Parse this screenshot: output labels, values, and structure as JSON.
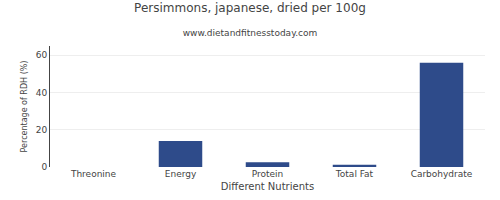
{
  "chart_data": {
    "type": "bar",
    "title": "Persimmons, japanese, dried per 100g",
    "subtitle": "www.dietandfitnesstoday.com",
    "xlabel": "Different Nutrients",
    "ylabel": "Percentage of RDH (%)",
    "categories": [
      "Threonine",
      "Energy",
      "Protein",
      "Total Fat",
      "Carbohydrate"
    ],
    "values": [
      0,
      14,
      2.5,
      1.2,
      56
    ],
    "color": "#2E4B8A",
    "ylim": [
      0,
      65
    ],
    "yticks": [
      0,
      20,
      40,
      60
    ],
    "grid": true
  }
}
